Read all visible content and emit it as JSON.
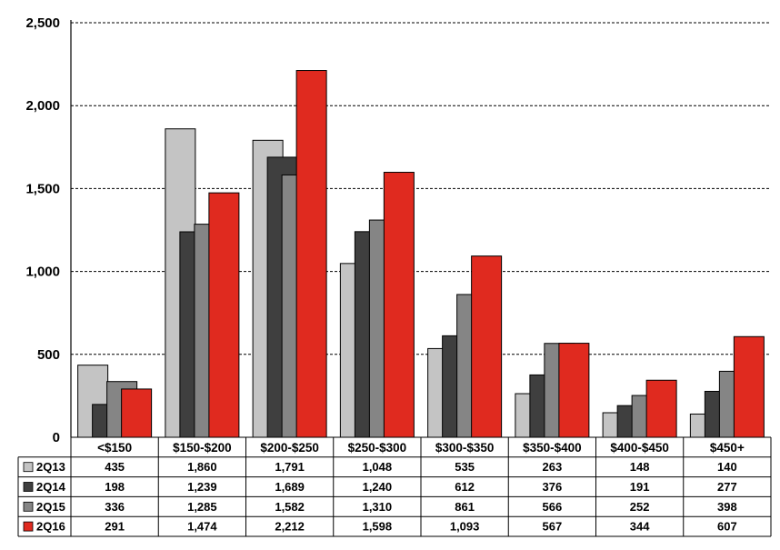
{
  "chart_data": {
    "type": "bar",
    "categories": [
      "<$150",
      "$150-$200",
      "$200-$250",
      "$250-$300",
      "$300-$350",
      "$350-$400",
      "$400-$450",
      "$450+"
    ],
    "series": [
      {
        "name": "2Q13",
        "color": "#c4c4c4",
        "values": [
          435,
          1860,
          1791,
          1048,
          535,
          263,
          148,
          140
        ]
      },
      {
        "name": "2Q14",
        "color": "#3f3f3f",
        "values": [
          198,
          1239,
          1689,
          1240,
          612,
          376,
          191,
          277
        ]
      },
      {
        "name": "2Q15",
        "color": "#858585",
        "values": [
          336,
          1285,
          1582,
          1310,
          861,
          566,
          252,
          398
        ]
      },
      {
        "name": "2Q16",
        "color": "#e02a1f",
        "values": [
          291,
          1474,
          2212,
          1598,
          1093,
          567,
          344,
          607
        ]
      }
    ],
    "ylim": [
      0,
      2500
    ],
    "yticks": [
      "0",
      "500",
      "1,000",
      "1,500",
      "2,000",
      "2,500"
    ],
    "table": {
      "rows": [
        [
          "435",
          "1,860",
          "1,791",
          "1,048",
          "535",
          "263",
          "148",
          "140"
        ],
        [
          "198",
          "1,239",
          "1,689",
          "1,240",
          "612",
          "376",
          "191",
          "277"
        ],
        [
          "336",
          "1,285",
          "1,582",
          "1,310",
          "861",
          "566",
          "252",
          "398"
        ],
        [
          "291",
          "1,474",
          "2,212",
          "1,598",
          "1,093",
          "567",
          "344",
          "607"
        ]
      ]
    },
    "grid": "horizontal-dashed",
    "legend": "data-table"
  }
}
